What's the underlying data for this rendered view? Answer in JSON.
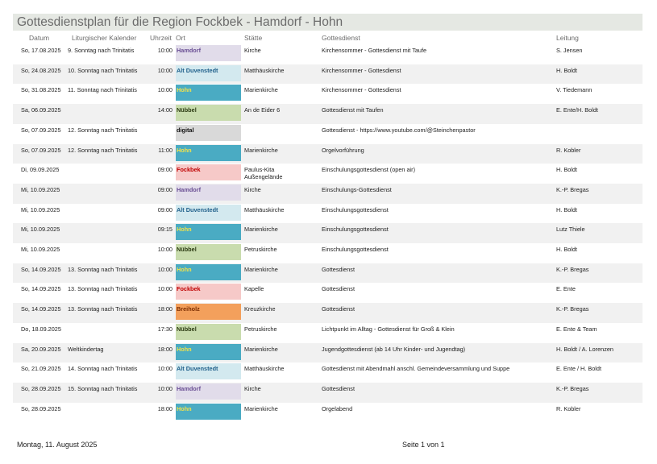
{
  "title": "Gottesdienstplan für die Region Fockbek - Hamdorf - Hohn",
  "headers": {
    "datum": "Datum",
    "kalender": "Liturgischer Kalender",
    "uhrzeit": "Uhrzeit",
    "ort": "Ort",
    "staette": "Stätte",
    "gottesdienst": "Gottesdienst",
    "leitung": "Leitung"
  },
  "ort_colors": {
    "Hamdorf": {
      "bg": "#e1dcea",
      "fg": "#6a4f94"
    },
    "Alt Duvenstedt": {
      "bg": "#d3e9ef",
      "fg": "#1f5f8a"
    },
    "Hohn": {
      "bg": "#4aabc3",
      "fg": "#f2e24a"
    },
    "Nübbel": {
      "bg": "#c9dcae",
      "fg": "#2b3a12"
    },
    "digital": {
      "bg": "#d9d9d9",
      "fg": "#111111"
    },
    "Fockbek": {
      "bg": "#f6c9c8",
      "fg": "#c00000"
    },
    "Breiholz": {
      "bg": "#f3a05c",
      "fg": "#7a2c00"
    }
  },
  "rows": [
    {
      "datum": "So, 17.08.2025",
      "kalender": "9. Sonntag nach Trinitatis",
      "uhrzeit": "10:00",
      "ort": "Hamdorf",
      "staette": "Kirche",
      "gottesdienst": "Kirchensommer - Gottesdienst mit Taufe",
      "leitung": "S. Jensen"
    },
    {
      "datum": "So, 24.08.2025",
      "kalender": "10. Sonntag nach Trinitatis",
      "uhrzeit": "10:00",
      "ort": "Alt Duvenstedt",
      "staette": "Matthäuskirche",
      "gottesdienst": "Kirchensommer - Gottesdienst",
      "leitung": "H. Boldt"
    },
    {
      "datum": "So, 31.08.2025",
      "kalender": "11. Sonntag nach Trinitatis",
      "uhrzeit": "10:00",
      "ort": "Hohn",
      "staette": "Marienkirche",
      "gottesdienst": "Kirchensommer - Gottesdienst",
      "leitung": "V. Tiedemann"
    },
    {
      "datum": "Sa, 06.09.2025",
      "kalender": "",
      "uhrzeit": "14:00",
      "ort": "Nübbel",
      "staette": "An de Eider 6",
      "gottesdienst": "Gottesdienst mit Taufen",
      "leitung": "E. Ente/H. Boldt"
    },
    {
      "datum": "So, 07.09.2025",
      "kalender": "12. Sonntag nach Trinitatis",
      "uhrzeit": "",
      "ort": "digital",
      "staette": "",
      "gottesdienst": "Gottesdienst - https://www.youtube.com/@Steinchenpastor",
      "leitung": ""
    },
    {
      "datum": "So, 07.09.2025",
      "kalender": "12. Sonntag nach Trinitatis",
      "uhrzeit": "11:00",
      "ort": "Hohn",
      "staette": "Marienkirche",
      "gottesdienst": "Orgelvorführung",
      "leitung": "R. Kobler"
    },
    {
      "datum": "Di, 09.09.2025",
      "kalender": "",
      "uhrzeit": "09:00",
      "ort": "Fockbek",
      "staette": "Paulus-Kita Außengelände",
      "gottesdienst": "Einschulungsgottesdienst (open air)",
      "leitung": "H. Boldt"
    },
    {
      "datum": "Mi, 10.09.2025",
      "kalender": "",
      "uhrzeit": "09:00",
      "ort": "Hamdorf",
      "staette": "Kirche",
      "gottesdienst": "Einschulungs-Gottesdienst",
      "leitung": "K.-P. Bregas"
    },
    {
      "datum": "Mi, 10.09.2025",
      "kalender": "",
      "uhrzeit": "09:00",
      "ort": "Alt Duvenstedt",
      "staette": "Matthäuskirche",
      "gottesdienst": "Einschulungsgottesdienst",
      "leitung": "H. Boldt"
    },
    {
      "datum": "Mi, 10.09.2025",
      "kalender": "",
      "uhrzeit": "09:15",
      "ort": "Hohn",
      "staette": "Marienkirche",
      "gottesdienst": "Einschulungsgottesdienst",
      "leitung": "Lutz Thiele"
    },
    {
      "datum": "Mi, 10.09.2025",
      "kalender": "",
      "uhrzeit": "10:00",
      "ort": "Nübbel",
      "staette": "Petruskirche",
      "gottesdienst": "Einschulungsgottesdienst",
      "leitung": "H. Boldt"
    },
    {
      "datum": "So, 14.09.2025",
      "kalender": "13. Sonntag nach Trinitatis",
      "uhrzeit": "10:00",
      "ort": "Hohn",
      "staette": "Marienkirche",
      "gottesdienst": "Gottesdienst",
      "leitung": "K.-P. Bregas"
    },
    {
      "datum": "So, 14.09.2025",
      "kalender": "13. Sonntag nach Trinitatis",
      "uhrzeit": "10:00",
      "ort": "Fockbek",
      "staette": "Kapelle",
      "gottesdienst": "Gottesdienst",
      "leitung": "E. Ente"
    },
    {
      "datum": "So, 14.09.2025",
      "kalender": "13. Sonntag nach Trinitatis",
      "uhrzeit": "18:00",
      "ort": "Breiholz",
      "staette": "Kreuzkirche",
      "gottesdienst": "Gottesdienst",
      "leitung": "K.-P. Bregas"
    },
    {
      "datum": "Do, 18.09.2025",
      "kalender": "",
      "uhrzeit": "17:30",
      "ort": "Nübbel",
      "staette": "Petruskirche",
      "gottesdienst": "Lichtpunkt im Alltag - Gottesdienst für Groß & Klein",
      "leitung": "E. Ente & Team"
    },
    {
      "datum": "Sa, 20.09.2025",
      "kalender": "Weltkindertag",
      "uhrzeit": "18:00",
      "ort": "Hohn",
      "staette": "Marienkirche",
      "gottesdienst": "Jugendgottesdienst (ab 14 Uhr Kinder- und Jugendtag)",
      "leitung": "H. Boldt / A. Lorenzen"
    },
    {
      "datum": "So, 21.09.2025",
      "kalender": "14. Sonntag nach Trinitatis",
      "uhrzeit": "10:00",
      "ort": "Alt Duvenstedt",
      "staette": "Matthäuskirche",
      "gottesdienst": "Gottesdienst mit Abendmahl anschl. Gemeindeversammlung und Suppe",
      "leitung": "E. Ente / H. Boldt"
    },
    {
      "datum": "So, 28.09.2025",
      "kalender": "15. Sonntag nach Trinitatis",
      "uhrzeit": "10:00",
      "ort": "Hamdorf",
      "staette": "Kirche",
      "gottesdienst": "Gottesdienst",
      "leitung": "K.-P. Bregas"
    },
    {
      "datum": "So, 28.09.2025",
      "kalender": "",
      "uhrzeit": "18:00",
      "ort": "Hohn",
      "staette": "Marienkirche",
      "gottesdienst": "Orgelabend",
      "leitung": "R. Kobler"
    }
  ],
  "footer": {
    "date": "Montag, 11. August 2025",
    "page": "Seite 1 von 1"
  }
}
